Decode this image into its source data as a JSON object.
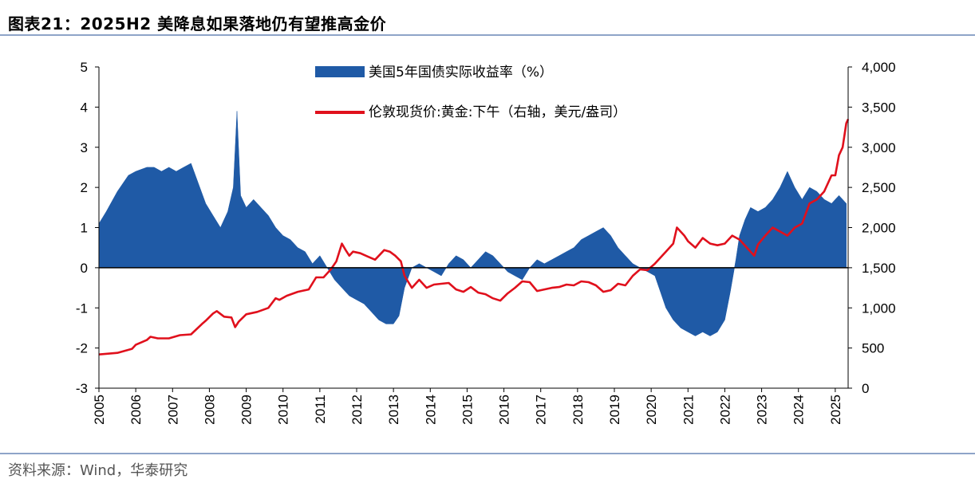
{
  "header": {
    "figure_label": "图表21：",
    "title": "2025H2 美降息如果落地仍有望推高金价"
  },
  "footer": {
    "source": "资料来源：Wind，华泰研究"
  },
  "colors": {
    "bar": "#1f5aa6",
    "line": "#e0101c",
    "rule": "#8ea4c8"
  },
  "chart_data": {
    "type": "area",
    "title": "2025H2 美降息如果落地仍有望推高金价",
    "x_tick_labels": [
      "2005",
      "2006",
      "2007",
      "2008",
      "2009",
      "2010",
      "2011",
      "2012",
      "2013",
      "2014",
      "2015",
      "2016",
      "2017",
      "2018",
      "2019",
      "2020",
      "2021",
      "2022",
      "2023",
      "2024",
      "2025"
    ],
    "x_range": [
      2005.0,
      2025.35
    ],
    "left_axis": {
      "ylim": [
        -3,
        5
      ],
      "ticks": [
        -3,
        -2,
        -1,
        0,
        1,
        2,
        3,
        4,
        5
      ],
      "tick_labels": [
        "-3",
        "-2",
        "-1",
        "0",
        "1",
        "2",
        "3",
        "4",
        "5"
      ]
    },
    "right_axis": {
      "ylim": [
        0,
        4000
      ],
      "ticks": [
        0,
        500,
        1000,
        1500,
        2000,
        2500,
        3000,
        3500,
        4000
      ],
      "tick_labels": [
        "0",
        "500",
        "1,000",
        "1,500",
        "2,000",
        "2,500",
        "3,000",
        "3,500",
        "4,000"
      ]
    },
    "legend": [
      {
        "name": "美国5年国债实际收益率（%）",
        "kind": "area"
      },
      {
        "name": "伦敦现货价:黄金:下午（右轴，美元/盎司）",
        "kind": "line"
      }
    ],
    "series": [
      {
        "name": "美国5年国债实际收益率（%）",
        "axis": "left",
        "x": [
          2005.0,
          2005.2,
          2005.5,
          2005.8,
          2006.0,
          2006.3,
          2006.5,
          2006.7,
          2006.9,
          2007.1,
          2007.3,
          2007.5,
          2007.7,
          2007.9,
          2008.1,
          2008.3,
          2008.5,
          2008.65,
          2008.75,
          2008.85,
          2009.0,
          2009.2,
          2009.4,
          2009.6,
          2009.8,
          2010.0,
          2010.2,
          2010.4,
          2010.6,
          2010.8,
          2011.0,
          2011.2,
          2011.4,
          2011.6,
          2011.8,
          2012.0,
          2012.2,
          2012.4,
          2012.6,
          2012.8,
          2013.0,
          2013.15,
          2013.3,
          2013.5,
          2013.7,
          2013.9,
          2014.1,
          2014.3,
          2014.5,
          2014.7,
          2014.9,
          2015.1,
          2015.3,
          2015.5,
          2015.7,
          2015.9,
          2016.1,
          2016.3,
          2016.5,
          2016.7,
          2016.9,
          2017.1,
          2017.3,
          2017.5,
          2017.7,
          2017.9,
          2018.1,
          2018.3,
          2018.5,
          2018.7,
          2018.9,
          2019.1,
          2019.3,
          2019.5,
          2019.7,
          2019.9,
          2020.1,
          2020.25,
          2020.4,
          2020.6,
          2020.8,
          2021.0,
          2021.2,
          2021.4,
          2021.6,
          2021.8,
          2022.0,
          2022.15,
          2022.3,
          2022.4,
          2022.55,
          2022.7,
          2022.9,
          2023.1,
          2023.3,
          2023.5,
          2023.7,
          2023.9,
          2024.1,
          2024.3,
          2024.5,
          2024.7,
          2024.9,
          2025.1,
          2025.3
        ],
        "values": [
          1.1,
          1.4,
          1.9,
          2.3,
          2.4,
          2.5,
          2.5,
          2.4,
          2.5,
          2.4,
          2.5,
          2.6,
          2.1,
          1.6,
          1.3,
          1.0,
          1.4,
          2.0,
          3.9,
          1.8,
          1.5,
          1.7,
          1.5,
          1.3,
          1.0,
          0.8,
          0.7,
          0.5,
          0.4,
          0.1,
          0.3,
          0.0,
          -0.3,
          -0.5,
          -0.7,
          -0.8,
          -0.9,
          -1.1,
          -1.3,
          -1.4,
          -1.4,
          -1.2,
          -0.5,
          0.0,
          0.1,
          0.0,
          -0.1,
          -0.2,
          0.1,
          0.3,
          0.2,
          0.0,
          0.2,
          0.4,
          0.3,
          0.1,
          -0.1,
          -0.2,
          -0.3,
          0.0,
          0.2,
          0.1,
          0.2,
          0.3,
          0.4,
          0.5,
          0.7,
          0.8,
          0.9,
          1.0,
          0.8,
          0.5,
          0.3,
          0.1,
          0.0,
          -0.1,
          -0.2,
          -0.6,
          -1.0,
          -1.3,
          -1.5,
          -1.6,
          -1.7,
          -1.6,
          -1.7,
          -1.6,
          -1.3,
          -0.6,
          0.2,
          0.8,
          1.2,
          1.5,
          1.4,
          1.5,
          1.7,
          2.0,
          2.4,
          2.0,
          1.7,
          2.0,
          1.9,
          1.7,
          1.6,
          1.8,
          1.6
        ]
      },
      {
        "name": "伦敦现货价:黄金:下午（右轴，美元/盎司）",
        "axis": "right",
        "x": [
          2005.0,
          2005.5,
          2005.9,
          2006.0,
          2006.3,
          2006.4,
          2006.6,
          2006.9,
          2007.2,
          2007.5,
          2007.8,
          2007.9,
          2008.1,
          2008.2,
          2008.4,
          2008.6,
          2008.7,
          2008.8,
          2009.0,
          2009.3,
          2009.6,
          2009.8,
          2009.9,
          2010.1,
          2010.4,
          2010.7,
          2010.9,
          2011.1,
          2011.3,
          2011.45,
          2011.6,
          2011.7,
          2011.8,
          2011.9,
          2012.1,
          2012.3,
          2012.5,
          2012.75,
          2012.9,
          2013.05,
          2013.2,
          2013.3,
          2013.5,
          2013.7,
          2013.9,
          2014.1,
          2014.3,
          2014.5,
          2014.7,
          2014.9,
          2015.1,
          2015.3,
          2015.5,
          2015.7,
          2015.9,
          2016.1,
          2016.3,
          2016.5,
          2016.7,
          2016.9,
          2017.1,
          2017.3,
          2017.5,
          2017.7,
          2017.9,
          2018.1,
          2018.3,
          2018.5,
          2018.7,
          2018.9,
          2019.1,
          2019.3,
          2019.5,
          2019.7,
          2019.9,
          2020.1,
          2020.2,
          2020.4,
          2020.6,
          2020.7,
          2020.9,
          2021.0,
          2021.2,
          2021.4,
          2021.6,
          2021.8,
          2022.0,
          2022.2,
          2022.4,
          2022.6,
          2022.8,
          2022.9,
          2023.1,
          2023.3,
          2023.5,
          2023.7,
          2023.9,
          2024.1,
          2024.3,
          2024.5,
          2024.7,
          2024.9,
          2025.0,
          2025.1,
          2025.2,
          2025.3,
          2025.35
        ],
        "values": [
          420,
          440,
          490,
          540,
          600,
          640,
          620,
          620,
          660,
          670,
          800,
          840,
          930,
          960,
          890,
          880,
          760,
          830,
          920,
          950,
          1000,
          1120,
          1100,
          1150,
          1200,
          1230,
          1380,
          1380,
          1480,
          1580,
          1800,
          1720,
          1650,
          1700,
          1680,
          1640,
          1600,
          1720,
          1700,
          1650,
          1580,
          1400,
          1250,
          1350,
          1250,
          1290,
          1300,
          1310,
          1230,
          1200,
          1260,
          1190,
          1170,
          1120,
          1090,
          1180,
          1250,
          1330,
          1320,
          1210,
          1230,
          1250,
          1260,
          1290,
          1280,
          1330,
          1320,
          1280,
          1200,
          1220,
          1300,
          1280,
          1400,
          1480,
          1470,
          1550,
          1600,
          1700,
          1800,
          2000,
          1900,
          1830,
          1750,
          1870,
          1800,
          1780,
          1800,
          1900,
          1850,
          1750,
          1650,
          1790,
          1900,
          2000,
          1950,
          1900,
          2000,
          2050,
          2300,
          2350,
          2450,
          2650,
          2650,
          2900,
          3000,
          3300,
          3350
        ]
      }
    ]
  }
}
